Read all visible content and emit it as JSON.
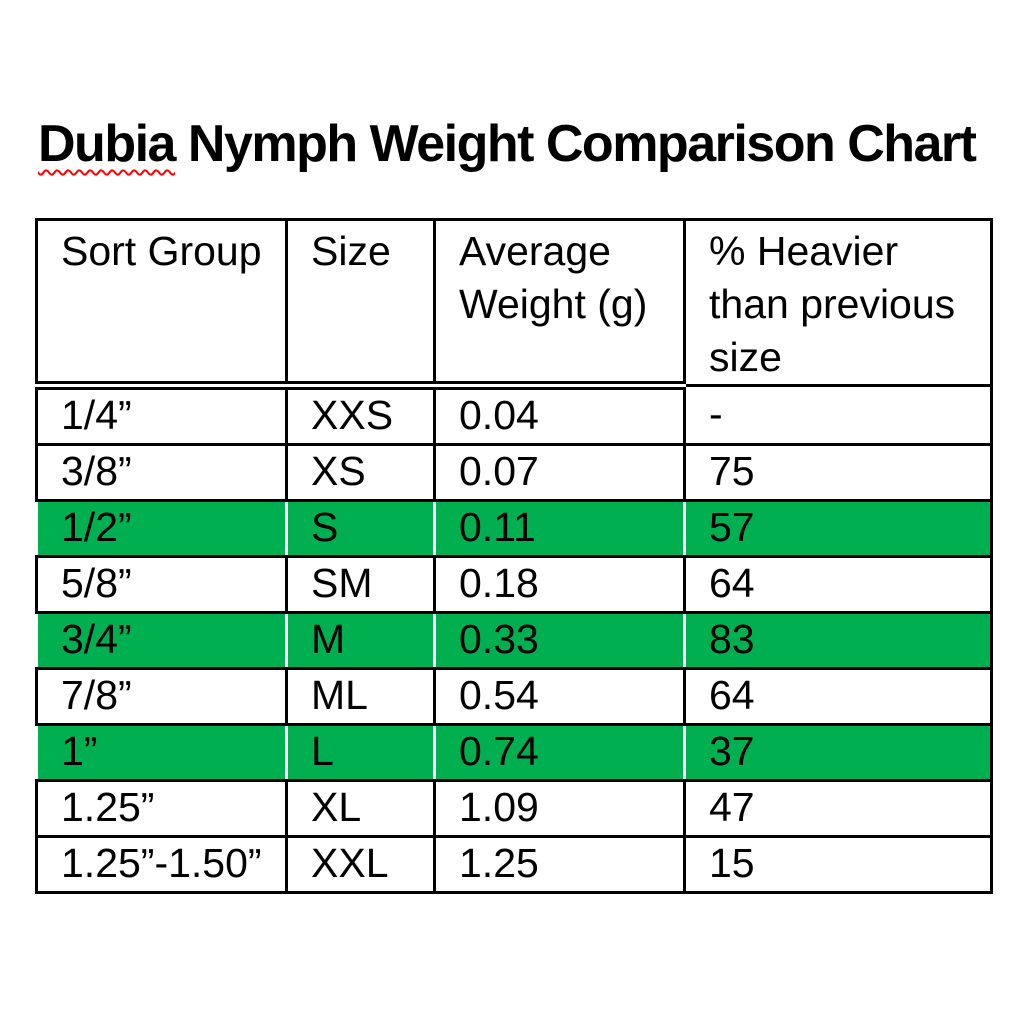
{
  "title": {
    "misspelled_word": "Dubia",
    "rest": " Nymph Weight Comparison Chart",
    "squiggle_color": "#ff0000"
  },
  "table": {
    "header_display": [
      "Sort Group",
      "Size",
      "Average\nWeight (g)",
      "% Heavier\nthan previous\nsize"
    ],
    "highlight_color": "#00B050",
    "rows": [
      {
        "cells": [
          "1/4”",
          "XXS",
          "0.04",
          "-"
        ],
        "highlighted": false
      },
      {
        "cells": [
          "3/8”",
          "XS",
          "0.07",
          "75"
        ],
        "highlighted": false
      },
      {
        "cells": [
          "1/2”",
          "S",
          "0.11",
          "57"
        ],
        "highlighted": true
      },
      {
        "cells": [
          "5/8”",
          "SM",
          "0.18",
          "64"
        ],
        "highlighted": false
      },
      {
        "cells": [
          "3/4”",
          "M",
          "0.33",
          "83"
        ],
        "highlighted": true
      },
      {
        "cells": [
          "7/8”",
          "ML",
          "0.54",
          "64"
        ],
        "highlighted": false
      },
      {
        "cells": [
          "1”",
          "L",
          "0.74",
          "37"
        ],
        "highlighted": true
      },
      {
        "cells": [
          "1.25”",
          "XL",
          "1.09",
          "47"
        ],
        "highlighted": false
      },
      {
        "cells": [
          "1.25”-1.50”",
          "XXL",
          "1.25",
          "15"
        ],
        "highlighted": false
      }
    ]
  },
  "chart_data": {
    "type": "table",
    "title": "Dubia Nymph Weight Comparison Chart",
    "columns": [
      "Sort Group",
      "Size",
      "Average Weight (g)",
      "% Heavier than previous size"
    ],
    "rows": [
      [
        "1/4”",
        "XXS",
        0.04,
        null
      ],
      [
        "3/8”",
        "XS",
        0.07,
        75
      ],
      [
        "1/2”",
        "S",
        0.11,
        57
      ],
      [
        "5/8”",
        "SM",
        0.18,
        64
      ],
      [
        "3/4”",
        "M",
        0.33,
        83
      ],
      [
        "7/8”",
        "ML",
        0.54,
        64
      ],
      [
        "1”",
        "L",
        0.74,
        37
      ],
      [
        "1.25”",
        "XL",
        1.09,
        47
      ],
      [
        "1.25”-1.50”",
        "XXL",
        1.25,
        15
      ]
    ],
    "highlighted_rows": [
      "1/2”",
      "3/4”",
      "1”"
    ],
    "highlight_color": "#00B050",
    "notes": "Highlighted rows shaded green; header separated from body by double rule under first three columns"
  }
}
